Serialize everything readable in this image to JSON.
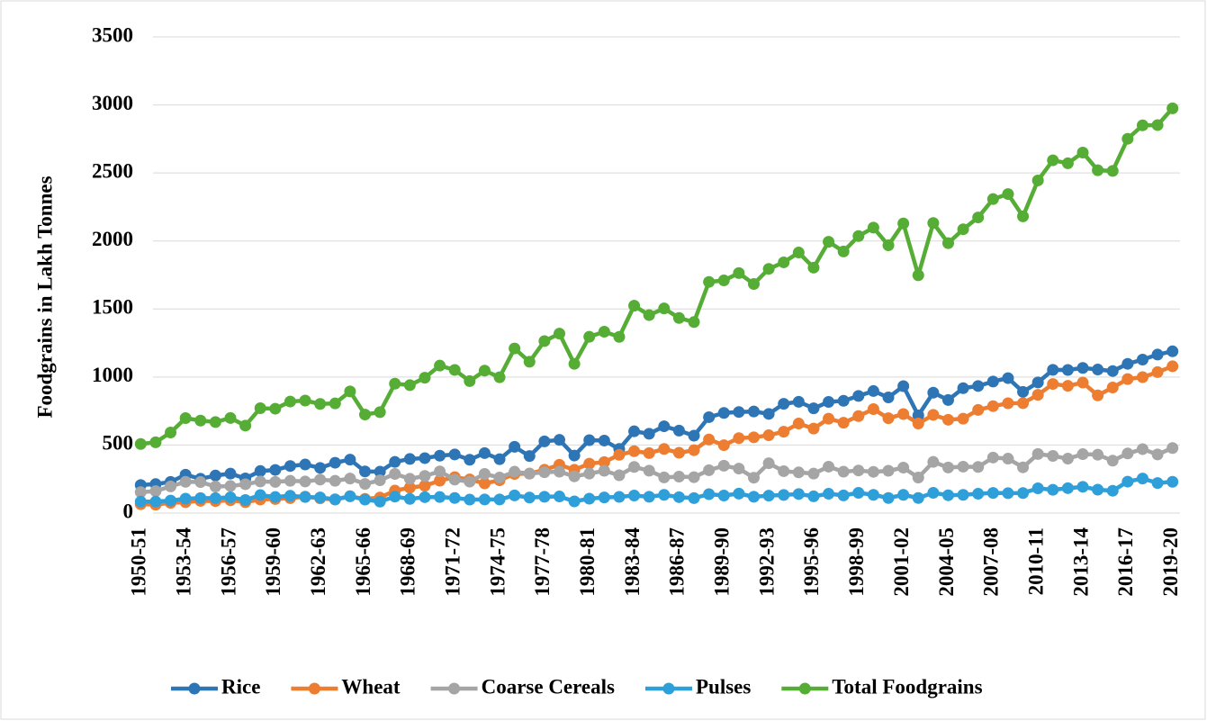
{
  "chart_data": {
    "type": "line",
    "y_label": "Foodgrains  in Lakh Tonnes",
    "categories": [
      "1950-51",
      null,
      null,
      "1953-54",
      null,
      null,
      "1956-57",
      null,
      null,
      "1959-60",
      null,
      null,
      "1962-63",
      null,
      null,
      "1965-66",
      null,
      null,
      "1968-69",
      null,
      null,
      "1971-72",
      null,
      null,
      "1974-75",
      null,
      null,
      "1977-78",
      null,
      null,
      "1980-81",
      null,
      null,
      "1983-84",
      null,
      null,
      "1986-87",
      null,
      null,
      "1989-90",
      null,
      null,
      "1992-93",
      null,
      null,
      "1995-96",
      null,
      null,
      "1998-99",
      null,
      null,
      "2001-02",
      null,
      null,
      "2004-05",
      null,
      null,
      "2007-08",
      null,
      null,
      "2010-11",
      null,
      null,
      "2013-14",
      null,
      null,
      "2016-17",
      null,
      null,
      "2019-20"
    ],
    "series": [
      {
        "name": "Rice",
        "color": "#2e75b6",
        "values": [
          206,
          213,
          229,
          282,
          252,
          276,
          290,
          255,
          309,
          317,
          346,
          357,
          332,
          370,
          393,
          306,
          304,
          376,
          398,
          404,
          422,
          431,
          392,
          441,
          396,
          487,
          419,
          527,
          538,
          423,
          536,
          533,
          471,
          601,
          583,
          638,
          606,
          569,
          705,
          736,
          743,
          747,
          729,
          803,
          818,
          770,
          817,
          825,
          861,
          897,
          850,
          933,
          718,
          885,
          831,
          918,
          934,
          967,
          992,
          891,
          960,
          1053,
          1052,
          1067,
          1055,
          1044,
          1097,
          1128,
          1165,
          1189
        ]
      },
      {
        "name": "Wheat",
        "color": "#ed7d31",
        "values": [
          65,
          62,
          75,
          80,
          90,
          88,
          94,
          80,
          100,
          103,
          110,
          121,
          108,
          99,
          123,
          104,
          114,
          165,
          187,
          201,
          238,
          264,
          247,
          218,
          241,
          288,
          290,
          318,
          355,
          318,
          363,
          375,
          428,
          455,
          441,
          471,
          443,
          462,
          541,
          499,
          551,
          557,
          572,
          598,
          658,
          621,
          694,
          664,
          713,
          764,
          697,
          728,
          658,
          722,
          686,
          694,
          758,
          786,
          807,
          808,
          869,
          949,
          935,
          959,
          865,
          923,
          985,
          999,
          1036,
          1079
        ]
      },
      {
        "name": "Coarse Cereals",
        "color": "#a5a5a5",
        "values": [
          154,
          161,
          196,
          230,
          228,
          195,
          199,
          212,
          232,
          229,
          237,
          232,
          246,
          237,
          254,
          214,
          241,
          288,
          252,
          273,
          306,
          246,
          231,
          288,
          261,
          304,
          290,
          300,
          304,
          270,
          290,
          311,
          278,
          339,
          312,
          262,
          268,
          264,
          315,
          348,
          327,
          260,
          366,
          308,
          299,
          290,
          341,
          304,
          313,
          303,
          311,
          334,
          261,
          376,
          335,
          341,
          339,
          408,
          400,
          336,
          434,
          420,
          400,
          433,
          429,
          385,
          438,
          470,
          431,
          478
        ]
      },
      {
        "name": "Pulses",
        "color": "#2f9fd9",
        "values": [
          84,
          84,
          92,
          106,
          110,
          110,
          116,
          96,
          132,
          118,
          127,
          118,
          115,
          101,
          124,
          99,
          84,
          121,
          104,
          117,
          118,
          111,
          99,
          100,
          100,
          130,
          114,
          120,
          122,
          86,
          106,
          115,
          119,
          129,
          120,
          134,
          117,
          110,
          139,
          129,
          143,
          120,
          128,
          133,
          140,
          123,
          142,
          130,
          149,
          134,
          111,
          134,
          111,
          149,
          131,
          134,
          142,
          148,
          146,
          147,
          182,
          171,
          183,
          193,
          172,
          164,
          231,
          254,
          221,
          230
        ]
      },
      {
        "name": "Total Foodgrains",
        "color": "#56ad35",
        "values": [
          508,
          520,
          592,
          698,
          680,
          669,
          699,
          643,
          771,
          767,
          820,
          827,
          802,
          806,
          894,
          724,
          742,
          951,
          940,
          995,
          1084,
          1052,
          970,
          1047,
          998,
          1210,
          1112,
          1264,
          1319,
          1097,
          1296,
          1333,
          1295,
          1524,
          1455,
          1504,
          1434,
          1404,
          1699,
          1710,
          1764,
          1684,
          1795,
          1843,
          1915,
          1804,
          1994,
          1923,
          2036,
          2098,
          1968,
          2129,
          1748,
          2132,
          1984,
          2086,
          2173,
          2308,
          2345,
          2181,
          2445,
          2593,
          2571,
          2650,
          2520,
          2515,
          2751,
          2850,
          2852,
          2975
        ]
      }
    ],
    "ylim": [
      0,
      3500
    ],
    "yticks": [
      0,
      500,
      1000,
      1500,
      2000,
      2500,
      3000,
      3500
    ],
    "grid": true,
    "legend": "bottom"
  }
}
